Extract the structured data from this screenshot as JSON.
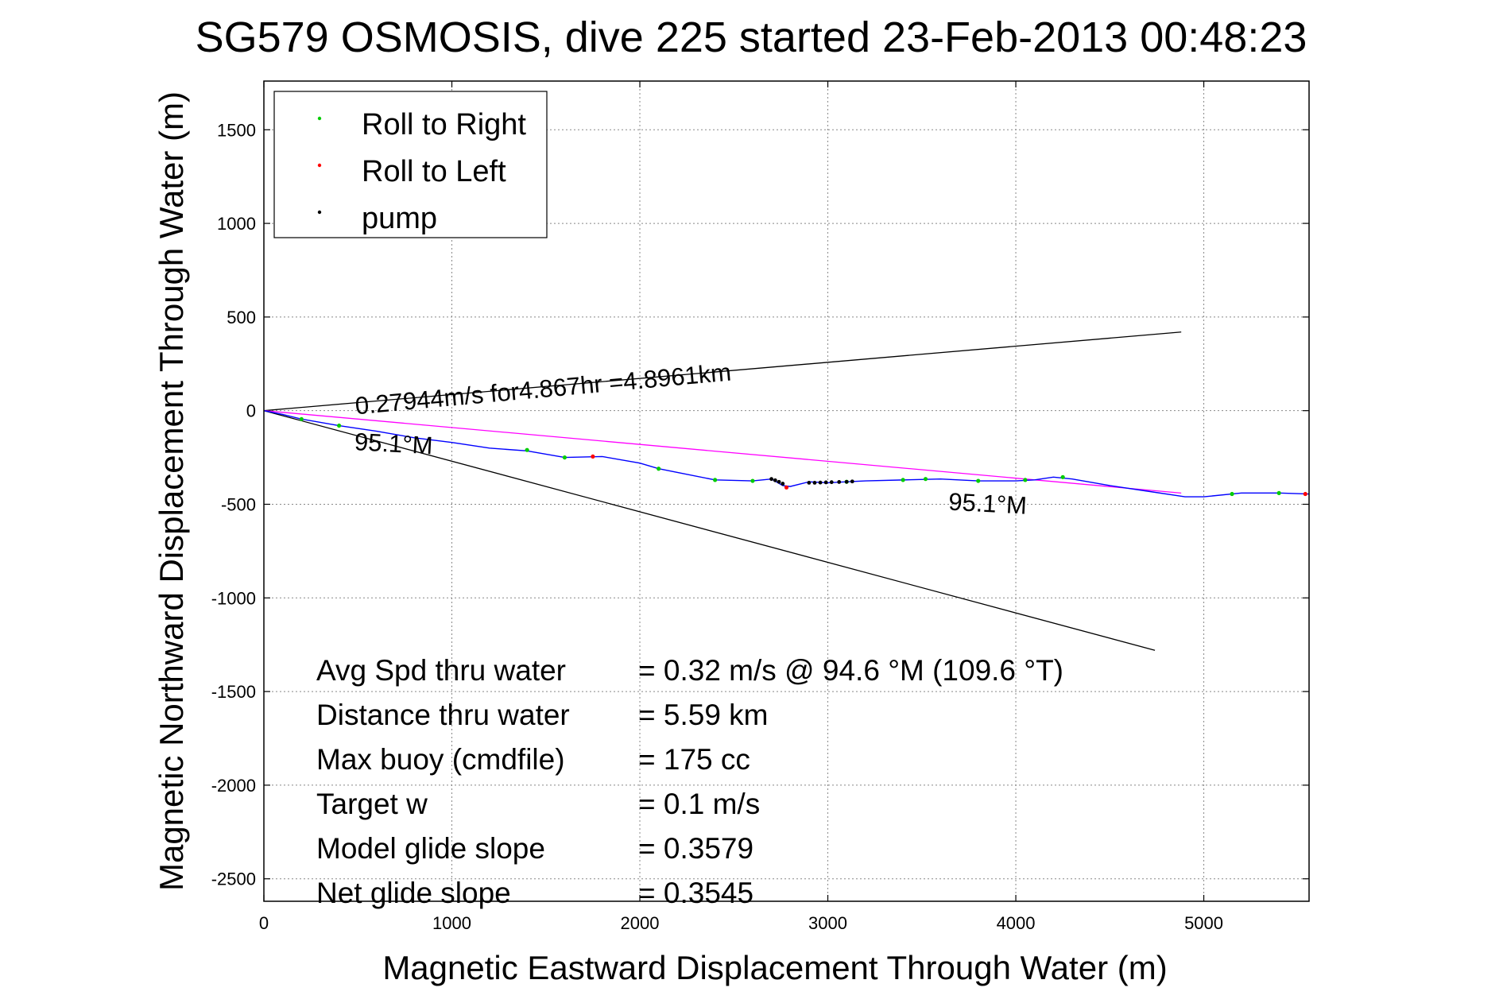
{
  "chart_data": {
    "type": "line",
    "title": "SG579 OSMOSIS, dive 225 started 23-Feb-2013 00:48:23",
    "xlabel": "Magnetic Eastward Displacement Through Water (m)",
    "ylabel": "Magnetic Northward Displacement Through Water (m)",
    "xlim": [
      0,
      5560
    ],
    "ylim": [
      -2620,
      1760
    ],
    "xticks": [
      0,
      1000,
      2000,
      3000,
      4000,
      5000
    ],
    "yticks": [
      1500,
      1000,
      500,
      0,
      -500,
      -1000,
      -1500,
      -2000,
      -2500
    ],
    "grid": true,
    "legend_position": "top-left",
    "legend": [
      {
        "name": "Roll to Right",
        "color": "#00cc00"
      },
      {
        "name": "Roll to Left",
        "color": "#ff0000"
      },
      {
        "name": "pump",
        "color": "#000000"
      }
    ],
    "track": {
      "color": "#0000ff",
      "x": [
        0,
        100,
        200,
        400,
        600,
        800,
        1000,
        1200,
        1400,
        1600,
        1800,
        2000,
        2100,
        2200,
        2400,
        2600,
        2700,
        2760,
        2800,
        2900,
        3000,
        3100,
        3200,
        3400,
        3600,
        3800,
        4000,
        4100,
        4200,
        4300,
        4500,
        4700,
        4900,
        5000,
        5200,
        5400,
        5560
      ],
      "y": [
        0,
        -20,
        -45,
        -80,
        -110,
        -145,
        -170,
        -200,
        -215,
        -250,
        -245,
        -280,
        -310,
        -330,
        -370,
        -375,
        -365,
        -400,
        -405,
        -380,
        -385,
        -380,
        -375,
        -370,
        -365,
        -375,
        -375,
        -370,
        -355,
        -365,
        -400,
        -430,
        -460,
        -460,
        -440,
        -440,
        -445
      ]
    },
    "roll_right_points": {
      "x": [
        200,
        400,
        1400,
        1600,
        2100,
        2400,
        2600,
        3100,
        3400,
        3520,
        3800,
        4050,
        4250,
        5150,
        5400
      ],
      "y": [
        -45,
        -80,
        -210,
        -250,
        -310,
        -370,
        -375,
        -380,
        -370,
        -365,
        -375,
        -370,
        -355,
        -445,
        -440
      ]
    },
    "roll_left_points": {
      "x": [
        1750,
        2780,
        5540
      ],
      "y": [
        -245,
        -410,
        -445
      ]
    },
    "pump_points": {
      "x": [
        2700,
        2720,
        2740,
        2760,
        2900,
        2930,
        2960,
        2990,
        3020,
        3060,
        3100,
        3130
      ],
      "y": [
        -365,
        -372,
        -380,
        -390,
        -385,
        -385,
        -384,
        -383,
        -382,
        -381,
        -380,
        -378
      ]
    },
    "lines": [
      {
        "name": "upper_heading_bound",
        "color": "#000000",
        "x": [
          0,
          4880
        ],
        "y": [
          0,
          420
        ]
      },
      {
        "name": "lower_heading_bound",
        "color": "#000000",
        "x": [
          0,
          4740
        ],
        "y": [
          0,
          -1280
        ]
      },
      {
        "name": "mean_track",
        "color": "#ff00ff",
        "x": [
          0,
          4880
        ],
        "y": [
          0,
          -440
        ]
      }
    ],
    "annotations": [
      {
        "text": "0.27944m/s for4.867hr =4.8961km",
        "x": 490,
        "y": -20,
        "rotate": -5.2,
        "size": 31
      },
      {
        "text": "95.1°M",
        "x": 480,
        "y": -210,
        "rotate": 3,
        "size": 31
      },
      {
        "text": "95.1°M",
        "x": 3640,
        "y": -530,
        "rotate": 3,
        "size": 31
      }
    ],
    "stats": [
      {
        "label": "Avg Spd thru water",
        "value": "=  0.32 m/s @  94.6 °M (109.6 °T)"
      },
      {
        "label": "Distance thru water",
        "value": "=  5.59 km"
      },
      {
        "label": "Max buoy (cmdfile)",
        "value": "= 175 cc"
      },
      {
        "label": "Target w",
        "value": "= 0.1 m/s"
      },
      {
        "label": "Model glide slope",
        "value": "= 0.3579"
      },
      {
        "label": "Net glide slope",
        "value": "= 0.3545"
      }
    ]
  }
}
